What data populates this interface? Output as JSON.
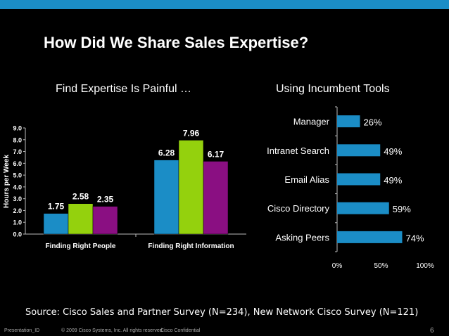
{
  "slide": {
    "title": "How Did We Share Sales Expertise?",
    "source": "Source: Cisco Sales and Partner Survey (N=234), New Network Cisco Survey (N=121)",
    "footer": {
      "presentation_id": "Presentation_ID",
      "copyright": "© 2009 Cisco Systems, Inc. All rights reserved.",
      "confidential": "Cisco Confidential",
      "page_number": "6"
    },
    "accent_color": "#1b8dc6"
  },
  "chart_data": [
    {
      "type": "bar",
      "title": "Find Expertise Is Painful …",
      "ylabel": "Hours per Week",
      "xlabel": "",
      "ylim": [
        0,
        9
      ],
      "yticks": [
        "0.0",
        "1.0",
        "2.0",
        "3.0",
        "4.0",
        "5.0",
        "6.0",
        "7.0",
        "8.0",
        "9.0"
      ],
      "categories": [
        "Finding Right People",
        "Finding Right Information"
      ],
      "series": [
        {
          "color": "#1b8dc6",
          "values": [
            1.75,
            6.28
          ],
          "labels": [
            "1.75",
            "6.28"
          ]
        },
        {
          "color": "#94d10d",
          "values": [
            2.58,
            7.96
          ],
          "labels": [
            "2.58",
            "7.96"
          ]
        },
        {
          "color": "#8a0f82",
          "values": [
            2.35,
            6.17
          ],
          "labels": [
            "2.35",
            "6.17"
          ]
        }
      ],
      "grid": false,
      "legend": "none"
    },
    {
      "type": "bar",
      "orientation": "horizontal",
      "title": "Using Incumbent Tools",
      "categories": [
        "Manager",
        "Intranet Search",
        "Email Alias",
        "Cisco Directory",
        "Asking Peers"
      ],
      "values": [
        26,
        49,
        49,
        59,
        74
      ],
      "labels": [
        "26%",
        "49%",
        "49%",
        "59%",
        "74%"
      ],
      "xlim": [
        0,
        100
      ],
      "xticks": [
        "0%",
        "50%",
        "100%"
      ],
      "color": "#1b8dc6",
      "grid": false,
      "legend": "none"
    }
  ]
}
